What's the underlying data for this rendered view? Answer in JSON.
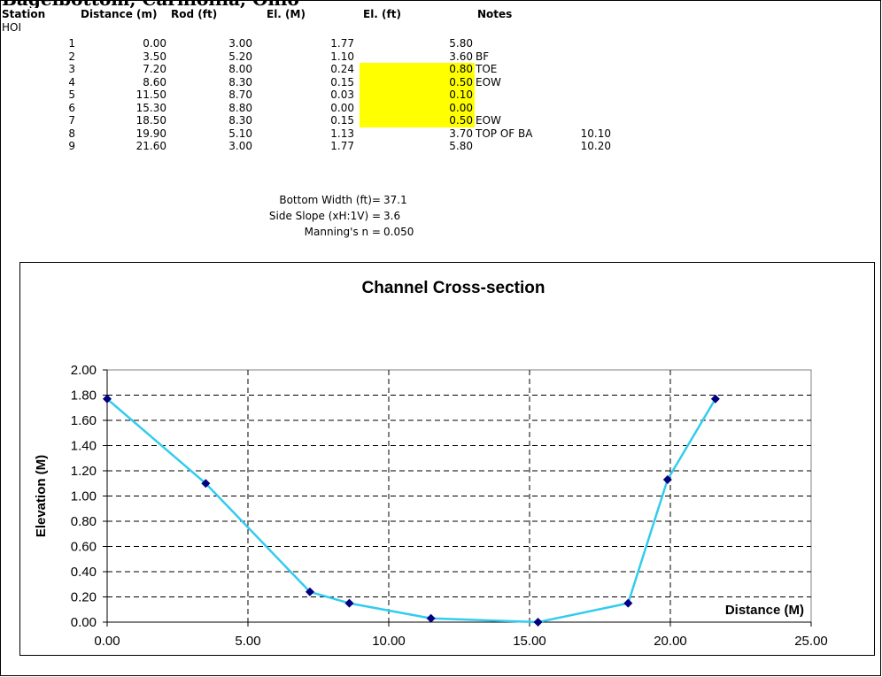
{
  "page": {
    "top_text": "Bagelbottom, Carniollia, Ohio"
  },
  "table": {
    "headers": [
      "Station",
      "Distance (m)",
      "Rod (ft)",
      "El. (M)",
      "El. (ft)",
      "Notes"
    ],
    "station_name": "HOI",
    "rows": [
      {
        "num": "1",
        "dist": "0.00",
        "rod": "3.00",
        "elm": "1.77",
        "elft": "5.80",
        "note": "",
        "extra": "",
        "hl": false
      },
      {
        "num": "2",
        "dist": "3.50",
        "rod": "5.20",
        "elm": "1.10",
        "elft": "3.60",
        "note": "BF",
        "extra": "",
        "hl": false
      },
      {
        "num": "3",
        "dist": "7.20",
        "rod": "8.00",
        "elm": "0.24",
        "elft": "0.80",
        "note": "TOE",
        "extra": "",
        "hl": true
      },
      {
        "num": "4",
        "dist": "8.60",
        "rod": "8.30",
        "elm": "0.15",
        "elft": "0.50",
        "note": "EOW",
        "extra": "",
        "hl": true
      },
      {
        "num": "5",
        "dist": "11.50",
        "rod": "8.70",
        "elm": "0.03",
        "elft": "0.10",
        "note": "",
        "extra": "",
        "hl": true
      },
      {
        "num": "6",
        "dist": "15.30",
        "rod": "8.80",
        "elm": "0.00",
        "elft": "0.00",
        "note": "",
        "extra": "",
        "hl": true
      },
      {
        "num": "7",
        "dist": "18.50",
        "rod": "8.30",
        "elm": "0.15",
        "elft": "0.50",
        "note": "EOW",
        "extra": "",
        "hl": true
      },
      {
        "num": "8",
        "dist": "19.90",
        "rod": "5.10",
        "elm": "1.13",
        "elft": "3.70",
        "note": "TOP OF BA",
        "extra": "10.10",
        "hl": false
      },
      {
        "num": "9",
        "dist": "21.60",
        "rod": "3.00",
        "elm": "1.77",
        "elft": "5.80",
        "note": "",
        "extra": "10.20",
        "hl": false
      }
    ],
    "highlight_color": "#ffff00"
  },
  "params": [
    {
      "label": "Bottom Width (ft)=",
      "value": "37.1"
    },
    {
      "label": "Side Slope (xH:1V) =",
      "value": "3.6"
    },
    {
      "label": "Manning's n =",
      "value": "0.050"
    }
  ],
  "chart_data": {
    "type": "scatter",
    "title": "Channel Cross-section",
    "xlabel": "Distance (M)",
    "ylabel": "Elevation (M)",
    "xlim": [
      0,
      25
    ],
    "ylim": [
      0,
      2
    ],
    "xticks": [
      "0.00",
      "5.00",
      "10.00",
      "15.00",
      "20.00",
      "25.00"
    ],
    "yticks": [
      "0.00",
      "0.20",
      "0.40",
      "0.60",
      "0.80",
      "1.00",
      "1.20",
      "1.40",
      "1.60",
      "1.80",
      "2.00"
    ],
    "grid": true,
    "line_color": "#33ccee",
    "marker_color": "#000080",
    "series": [
      {
        "x": [
          0.0,
          3.5,
          7.2,
          8.6,
          11.5,
          15.3,
          18.5,
          19.9,
          21.6
        ],
        "y": [
          1.77,
          1.1,
          0.24,
          0.15,
          0.03,
          0.0,
          0.15,
          1.13,
          1.77
        ]
      }
    ]
  }
}
